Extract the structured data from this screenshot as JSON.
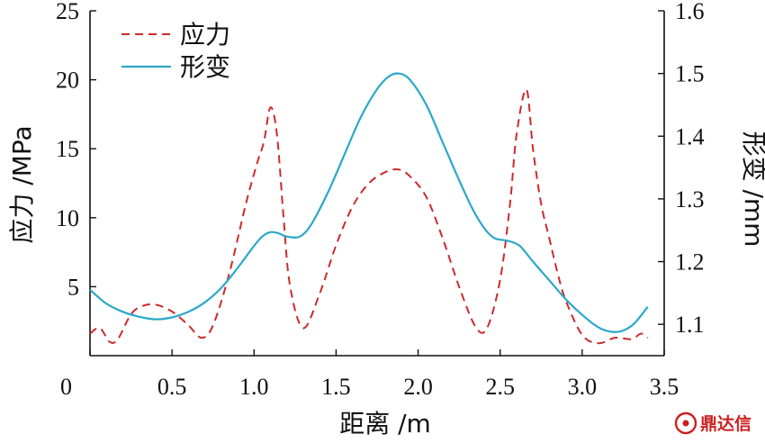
{
  "chart_data": {
    "type": "line",
    "xlabel": "距离 /m",
    "ylabel_left": "应力 /MPa",
    "ylabel_right": "形变 /mm",
    "xlim": [
      0,
      3.5
    ],
    "ylim_left": [
      0,
      25
    ],
    "ylim_right": [
      1.05,
      1.6
    ],
    "x_ticks": [
      "0",
      "0.5",
      "1.0",
      "1.5",
      "2.0",
      "2.5",
      "3.0",
      "3.5"
    ],
    "y_left_ticks": [
      "5",
      "10",
      "15",
      "20",
      "25"
    ],
    "y_right_ticks": [
      "1.1",
      "1.2",
      "1.3",
      "1.4",
      "1.5",
      "1.6"
    ],
    "legend_position": "top-left",
    "grid": false,
    "series": [
      {
        "name": "应力",
        "axis": "left",
        "style": "dashed",
        "color": "#cc2a2a",
        "x": [
          0.0,
          0.06,
          0.12,
          0.17,
          0.25,
          0.32,
          0.4,
          0.5,
          0.6,
          0.68,
          0.75,
          0.85,
          0.95,
          1.02,
          1.06,
          1.1,
          1.14,
          1.18,
          1.22,
          1.3,
          1.4,
          1.5,
          1.6,
          1.7,
          1.8,
          1.88,
          1.95,
          2.05,
          2.15,
          2.25,
          2.35,
          2.42,
          2.5,
          2.56,
          2.6,
          2.66,
          2.7,
          2.75,
          2.8,
          2.85,
          2.9,
          3.0,
          3.1,
          3.2,
          3.3,
          3.36,
          3.4
        ],
        "y": [
          1.6,
          2.0,
          1.0,
          1.2,
          3.0,
          3.6,
          3.7,
          3.2,
          2.2,
          1.3,
          2.2,
          6.0,
          11.0,
          14.0,
          15.5,
          18.0,
          16.0,
          10.0,
          5.0,
          2.0,
          4.5,
          8.0,
          10.8,
          12.5,
          13.3,
          13.5,
          13.0,
          11.5,
          8.5,
          5.0,
          2.1,
          2.0,
          5.5,
          11.0,
          16.0,
          19.3,
          15.0,
          11.0,
          8.5,
          6.0,
          4.0,
          1.5,
          0.9,
          1.3,
          1.2,
          1.6,
          1.3
        ]
      },
      {
        "name": "形变",
        "axis": "right",
        "style": "solid",
        "color": "#2aa8c9",
        "x": [
          0.0,
          0.1,
          0.2,
          0.3,
          0.4,
          0.5,
          0.6,
          0.7,
          0.8,
          0.9,
          1.0,
          1.05,
          1.1,
          1.15,
          1.2,
          1.28,
          1.35,
          1.45,
          1.55,
          1.65,
          1.75,
          1.82,
          1.88,
          1.95,
          2.05,
          2.15,
          2.25,
          2.35,
          2.45,
          2.55,
          2.62,
          2.7,
          2.8,
          2.9,
          3.0,
          3.1,
          3.18,
          3.25,
          3.32,
          3.4
        ],
        "y": [
          1.155,
          1.133,
          1.12,
          1.112,
          1.108,
          1.111,
          1.12,
          1.135,
          1.158,
          1.19,
          1.225,
          1.24,
          1.247,
          1.245,
          1.24,
          1.24,
          1.26,
          1.31,
          1.37,
          1.43,
          1.475,
          1.495,
          1.5,
          1.49,
          1.45,
          1.39,
          1.33,
          1.275,
          1.24,
          1.233,
          1.225,
          1.2,
          1.17,
          1.14,
          1.115,
          1.095,
          1.088,
          1.09,
          1.102,
          1.128
        ]
      }
    ]
  },
  "watermark": {
    "icon": "seal-logo-icon",
    "text": "鼎达信",
    "color": "#cc1f1f"
  }
}
